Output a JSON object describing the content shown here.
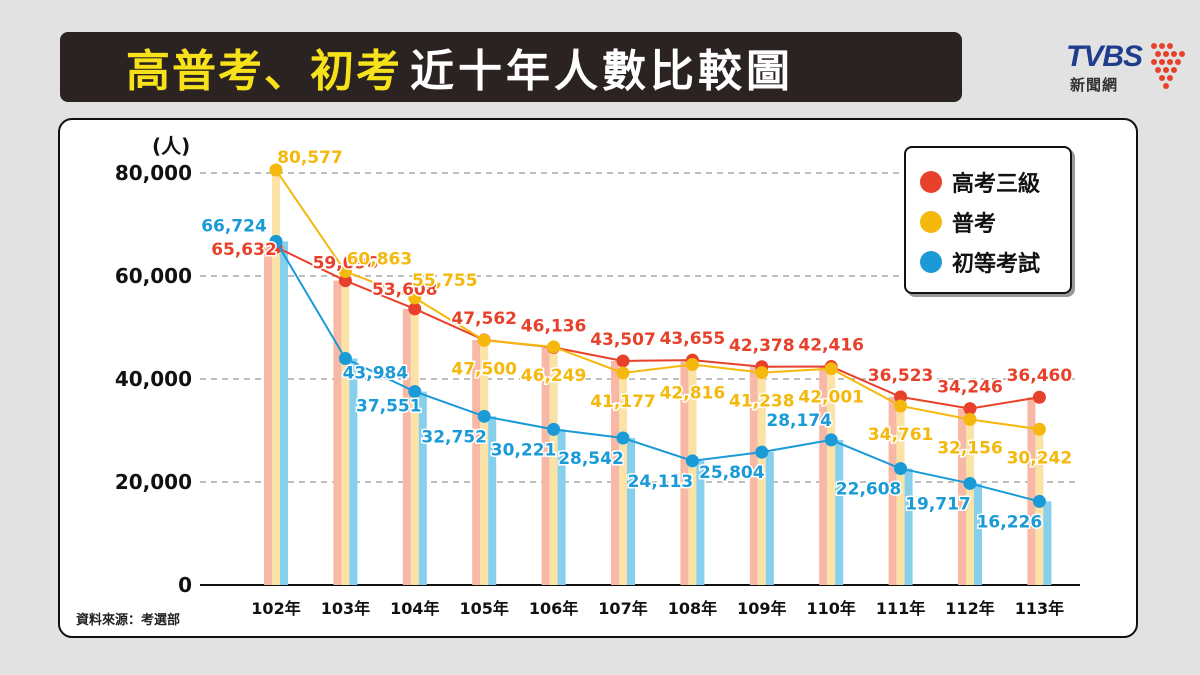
{
  "title": {
    "highlight": "高普考、初考",
    "rest": "近十年人數比較圖"
  },
  "logo": {
    "brand": "TVBS",
    "sub": "新聞網"
  },
  "source": "資料來源：考選部",
  "unit": "(人)",
  "colors": {
    "gaokao": "#e8412b",
    "pukao": "#f5b80c",
    "chukao": "#1a9ad6",
    "gaokao_bar": "#f7b9a5",
    "pukao_bar": "#fbe2a6",
    "chukao_bar": "#86d0ee"
  },
  "chart_data": {
    "type": "line",
    "categories": [
      "102年",
      "103年",
      "104年",
      "105年",
      "106年",
      "107年",
      "108年",
      "109年",
      "110年",
      "111年",
      "112年",
      "113年"
    ],
    "ylim": [
      0,
      80000
    ],
    "yticks": [
      0,
      20000,
      40000,
      60000,
      80000
    ],
    "ytick_labels": [
      "0",
      "20,000",
      "40,000",
      "60,000",
      "80,000"
    ],
    "ylabel": "(人)",
    "grid": true,
    "legend_position": "top-right",
    "series": [
      {
        "name": "高考三級",
        "color": "#e8412b",
        "values": [
          65632,
          59096,
          53608,
          47562,
          46136,
          43507,
          43655,
          42378,
          42416,
          36523,
          34246,
          36460
        ],
        "labels": [
          "65,632",
          "59,096",
          "53,608",
          "47,562",
          "46,136",
          "43,507",
          "43,655",
          "42,378",
          "42,416",
          "36,523",
          "34,246",
          "36,460"
        ]
      },
      {
        "name": "普考",
        "color": "#f5b80c",
        "values": [
          80577,
          60863,
          55755,
          47500,
          46249,
          41177,
          42816,
          41238,
          42001,
          34761,
          32156,
          30242
        ],
        "labels": [
          "80,577",
          "60,863",
          "55,755",
          "47,500",
          "46,249",
          "41,177",
          "42,816",
          "41,238",
          "42,001",
          "34,761",
          "32,156",
          "30,242"
        ]
      },
      {
        "name": "初等考試",
        "color": "#1a9ad6",
        "values": [
          66724,
          43984,
          37551,
          32752,
          30221,
          28542,
          24113,
          25804,
          28174,
          22608,
          19717,
          16226
        ],
        "labels": [
          "66,724",
          "43,984",
          "37,551",
          "32,752",
          "30,221",
          "28,542",
          "24,113",
          "25,804",
          "28,174",
          "22,608",
          "19,717",
          "16,226"
        ]
      }
    ]
  }
}
